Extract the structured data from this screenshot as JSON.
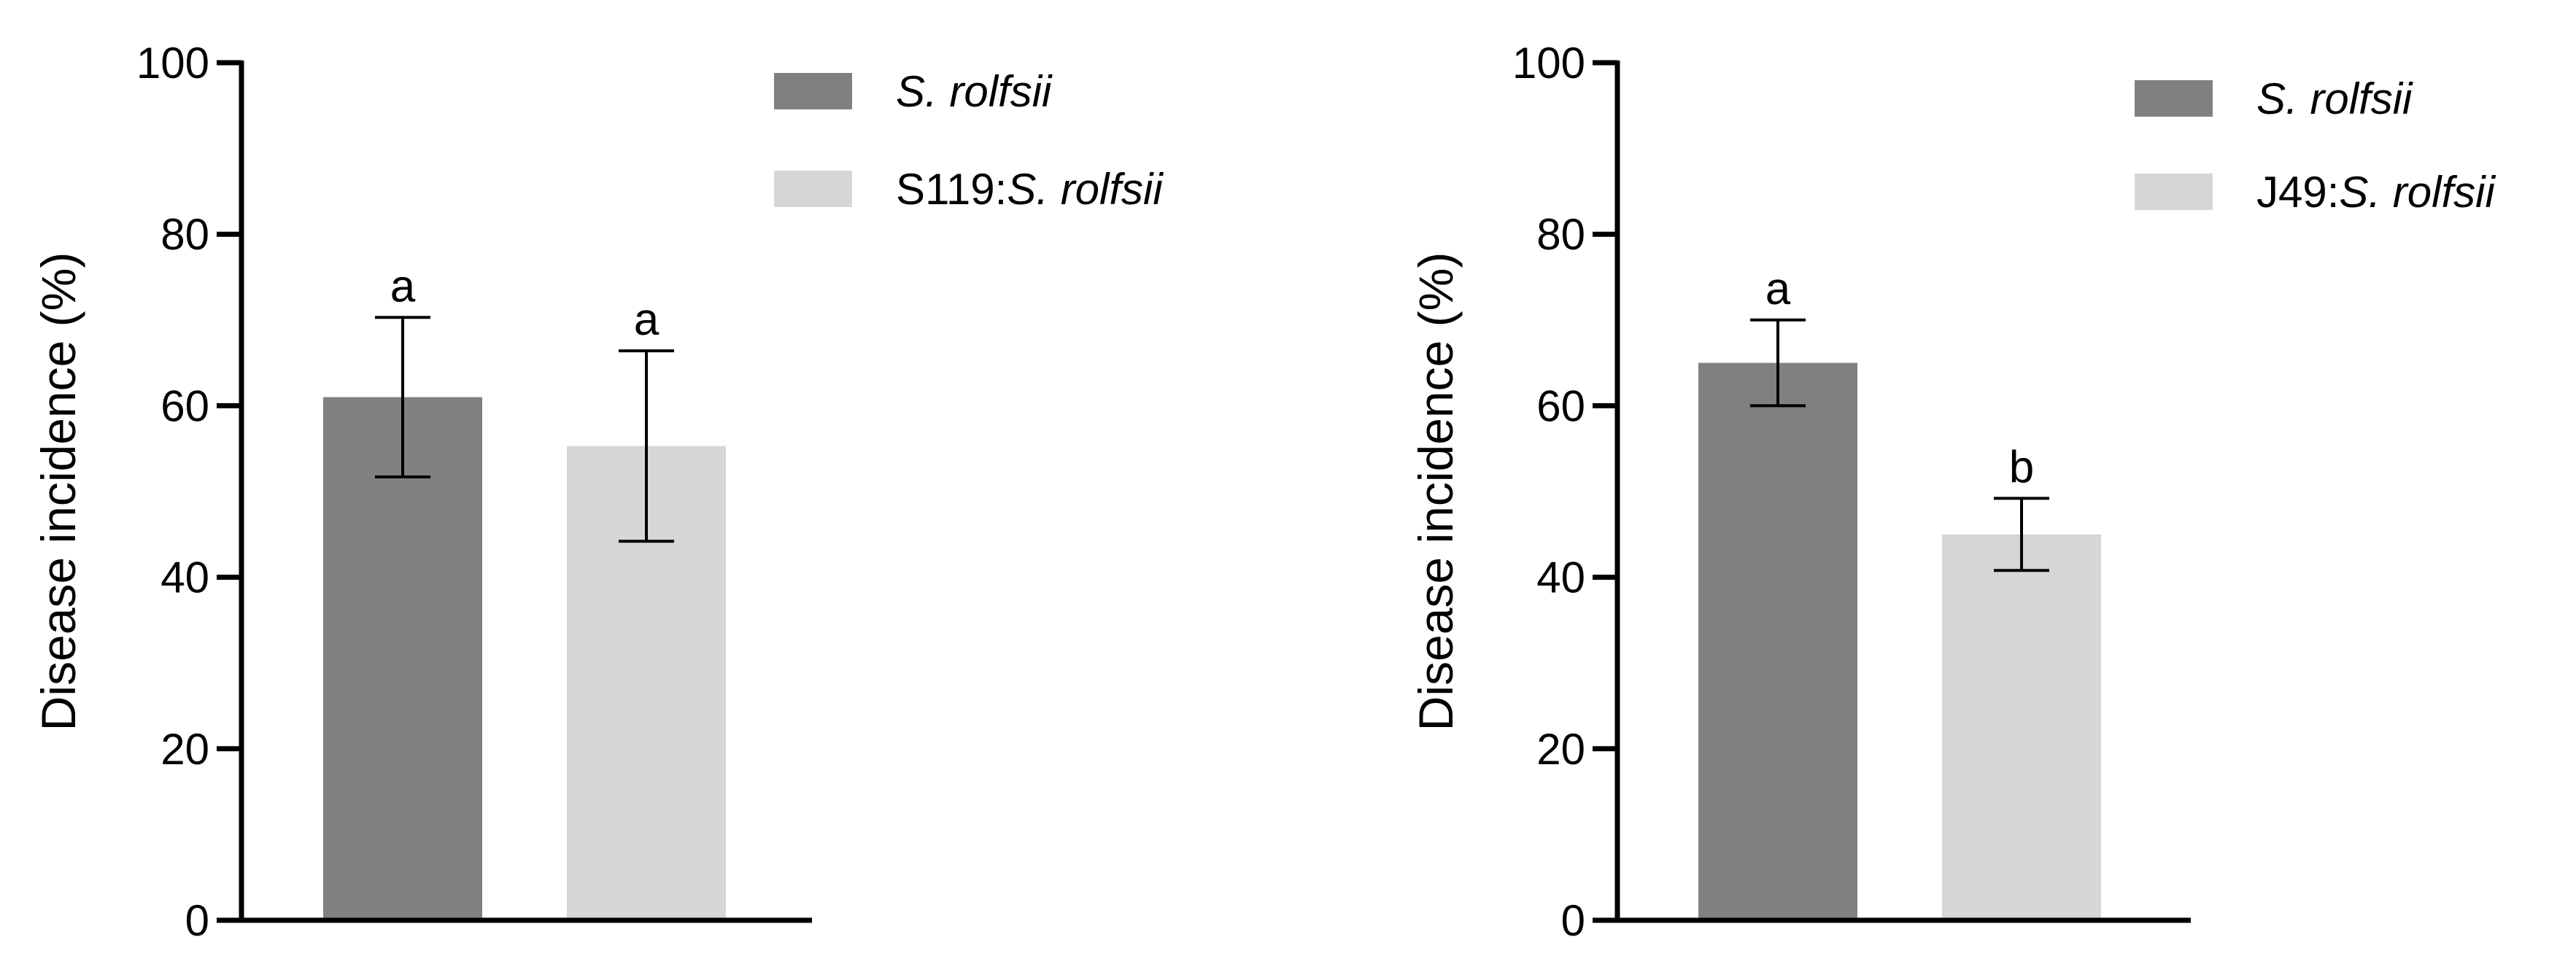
{
  "chart_data": [
    {
      "type": "bar",
      "ylabel": "Disease incidence (%)",
      "xlabel": "",
      "ylim": [
        0,
        100
      ],
      "yticks": [
        "0",
        "20",
        "40",
        "60",
        "80",
        "100"
      ],
      "legend": "top-right",
      "series": [
        {
          "name": "S. rolfsii",
          "legend_parts": [
            {
              "text": "S. rolfsii",
              "italic": true
            }
          ],
          "color": "#808080",
          "value": 61,
          "error": 9.3,
          "significance": "a"
        },
        {
          "name": "S119:S. rolfsii",
          "legend_parts": [
            {
              "text": "S119:",
              "italic": false
            },
            {
              "text": "S. rolfsii",
              "italic": true
            }
          ],
          "color": "#d6d6d6",
          "value": 55.3,
          "error": 11.1,
          "significance": "a"
        }
      ]
    },
    {
      "type": "bar",
      "ylabel": "Disease incidence (%)",
      "xlabel": "",
      "ylim": [
        0,
        100
      ],
      "yticks": [
        "0",
        "20",
        "40",
        "60",
        "80",
        "100"
      ],
      "legend": "top-right",
      "series": [
        {
          "name": "S. rolfsii",
          "legend_parts": [
            {
              "text": "S. rolfsii",
              "italic": true
            }
          ],
          "color": "#808080",
          "value": 65,
          "error": 5,
          "significance": "a"
        },
        {
          "name": "J49:S. rolfsii",
          "legend_parts": [
            {
              "text": "J49:",
              "italic": false
            },
            {
              "text": "S. rolfsii",
              "italic": true
            }
          ],
          "color": "#d6d6d6",
          "value": 45,
          "error": 4.2,
          "significance": "b"
        }
      ]
    }
  ]
}
